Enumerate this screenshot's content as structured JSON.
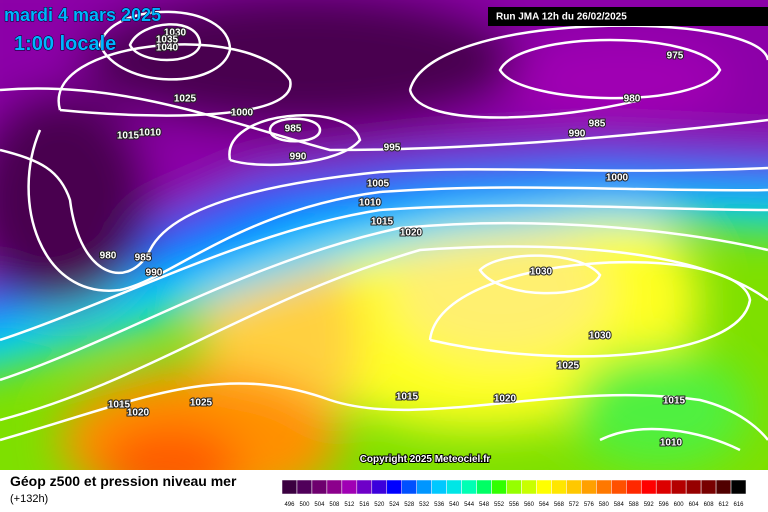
{
  "header": {
    "date": "mardi 4 mars 2025",
    "time": "1:00 locale",
    "run": "Run JMA 12h du 26/02/2025"
  },
  "copyright": "Copyright 2025 Meteociel.fr",
  "caption": {
    "title": "Géop z500 et pression niveau mer",
    "lead": "(+132h)"
  },
  "isobar_labels": [
    "1030",
    "1035",
    "1040",
    "1025",
    "1000",
    "1015",
    "1010",
    "985",
    "990",
    "995",
    "975",
    "980",
    "985",
    "990",
    "1000",
    "1005",
    "1010",
    "1015",
    "1020",
    "980",
    "985",
    "990",
    "1030",
    "1030",
    "1025",
    "1015",
    "1020",
    "1015",
    "1010",
    "1015",
    "1020",
    "1025"
  ],
  "colorbar": {
    "values": [
      496,
      500,
      504,
      508,
      512,
      516,
      520,
      524,
      528,
      532,
      536,
      540,
      544,
      548,
      552,
      556,
      560,
      564,
      568,
      572,
      576,
      580,
      584,
      588,
      592,
      596,
      600,
      604,
      608,
      612,
      616
    ],
    "colors": [
      "#3b0040",
      "#50005a",
      "#6e006e",
      "#8c008c",
      "#a000b4",
      "#6e00c8",
      "#3c00dc",
      "#0000ff",
      "#0050ff",
      "#0096ff",
      "#00c8ff",
      "#00e6e6",
      "#00ffb4",
      "#00ff64",
      "#32ff00",
      "#96ff00",
      "#c8ff00",
      "#ffff00",
      "#ffe600",
      "#ffc800",
      "#ffa000",
      "#ff7800",
      "#ff5000",
      "#ff2800",
      "#ff0000",
      "#dc0000",
      "#b40000",
      "#960000",
      "#780000",
      "#500000",
      "#000000"
    ]
  }
}
